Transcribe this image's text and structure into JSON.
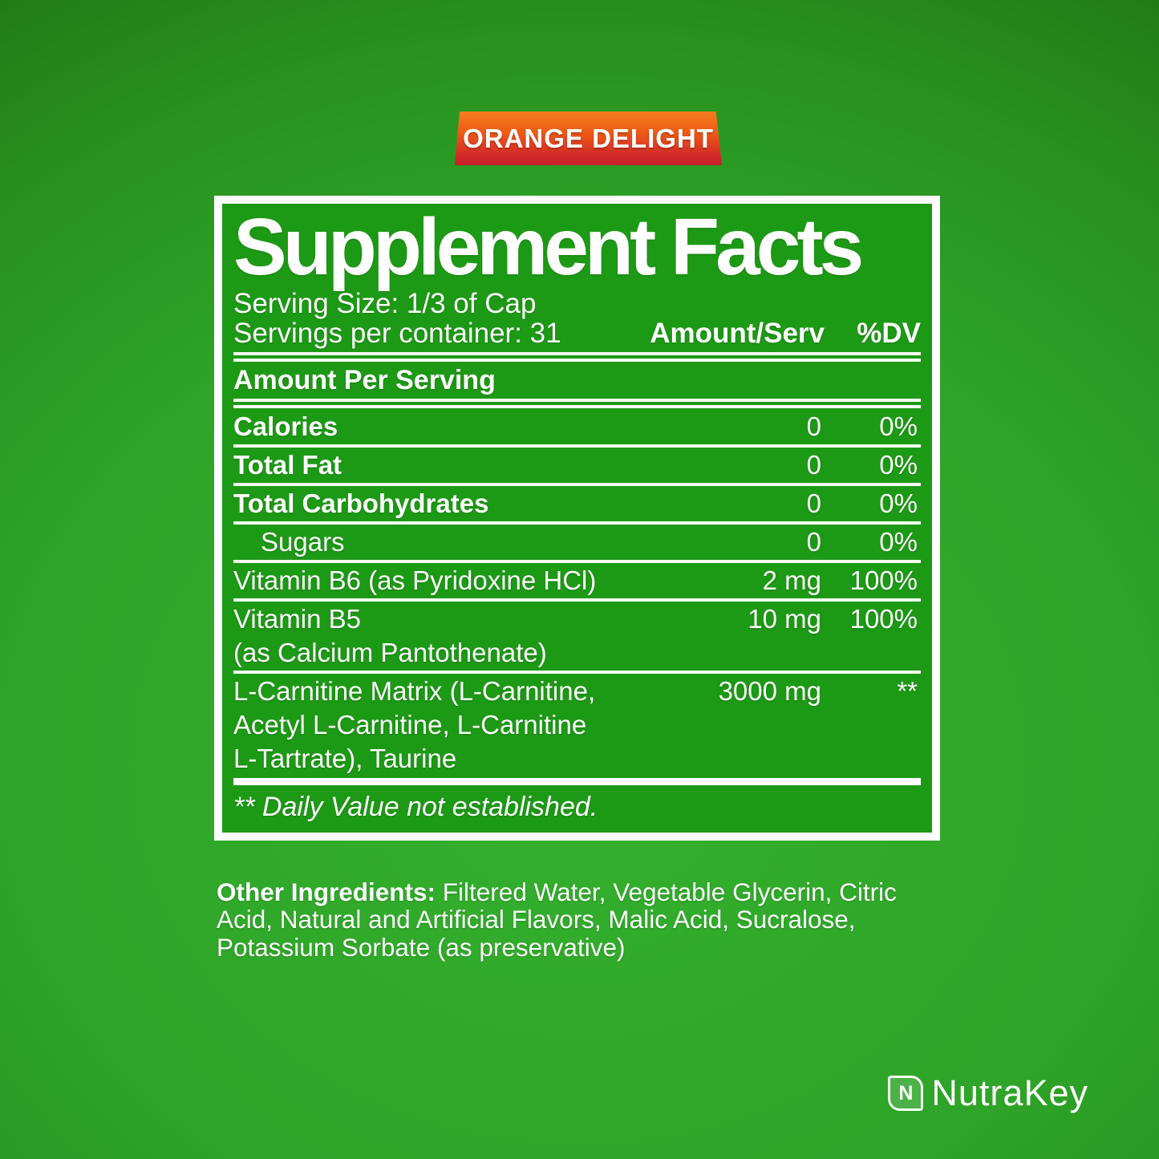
{
  "badge": {
    "label": "ORANGE DELIGHT"
  },
  "panel": {
    "title": "Supplement Facts",
    "serving_size": "Serving Size: 1/3 of Cap",
    "servings_per_container": "Servings per container: 31",
    "columns": {
      "amount": "Amount/Serv",
      "dv": "%DV"
    },
    "section_header": "Amount Per Serving",
    "rows": [
      {
        "label": "Calories",
        "amount": "0",
        "dv": "0%",
        "bold": true,
        "indent": false,
        "extra_lines": [],
        "sep": "thin"
      },
      {
        "label": "Total Fat",
        "amount": "0",
        "dv": "0%",
        "bold": true,
        "indent": false,
        "extra_lines": [],
        "sep": "thin"
      },
      {
        "label": "Total Carbohydrates",
        "amount": "0",
        "dv": "0%",
        "bold": true,
        "indent": false,
        "extra_lines": [],
        "sep": "thin"
      },
      {
        "label": "Sugars",
        "amount": "0",
        "dv": "0%",
        "bold": false,
        "indent": true,
        "extra_lines": [],
        "sep": "thin"
      },
      {
        "label": "Vitamin B6 (as Pyridoxine HCl)",
        "amount": "2 mg",
        "dv": "100%",
        "bold": false,
        "indent": false,
        "extra_lines": [],
        "sep": "thin"
      },
      {
        "label": "Vitamin B5",
        "amount": "10 mg",
        "dv": "100%",
        "bold": false,
        "indent": false,
        "extra_lines": [
          "(as Calcium Pantothenate)"
        ],
        "sep": "thin"
      },
      {
        "label": "L-Carnitine Matrix (L-Carnitine,",
        "amount": "3000 mg",
        "dv": "**",
        "bold": false,
        "indent": false,
        "extra_lines": [
          "Acetyl L-Carnitine, L-Carnitine",
          "L-Tartrate), Taurine"
        ],
        "sep": "thick"
      }
    ],
    "footnote": "** Daily Value not established."
  },
  "other_ingredients": {
    "label": "Other Ingredients:",
    "text": "Filtered Water, Vegetable Glycerin, Citric Acid, Natural and Artificial Flavors, Malic Acid, Sucralose, Potassium Sorbate (as preservative)"
  },
  "brand": {
    "icon_letter": "N",
    "name": "NutraKey"
  },
  "colors": {
    "panel_green": "#1d9a15",
    "background_center_green": "#34b02d",
    "background_corner_green": "#144f0b",
    "badge_orange_top": "#f57d1e",
    "badge_red_bottom": "#c6202b",
    "text_white": "#ffffff"
  }
}
